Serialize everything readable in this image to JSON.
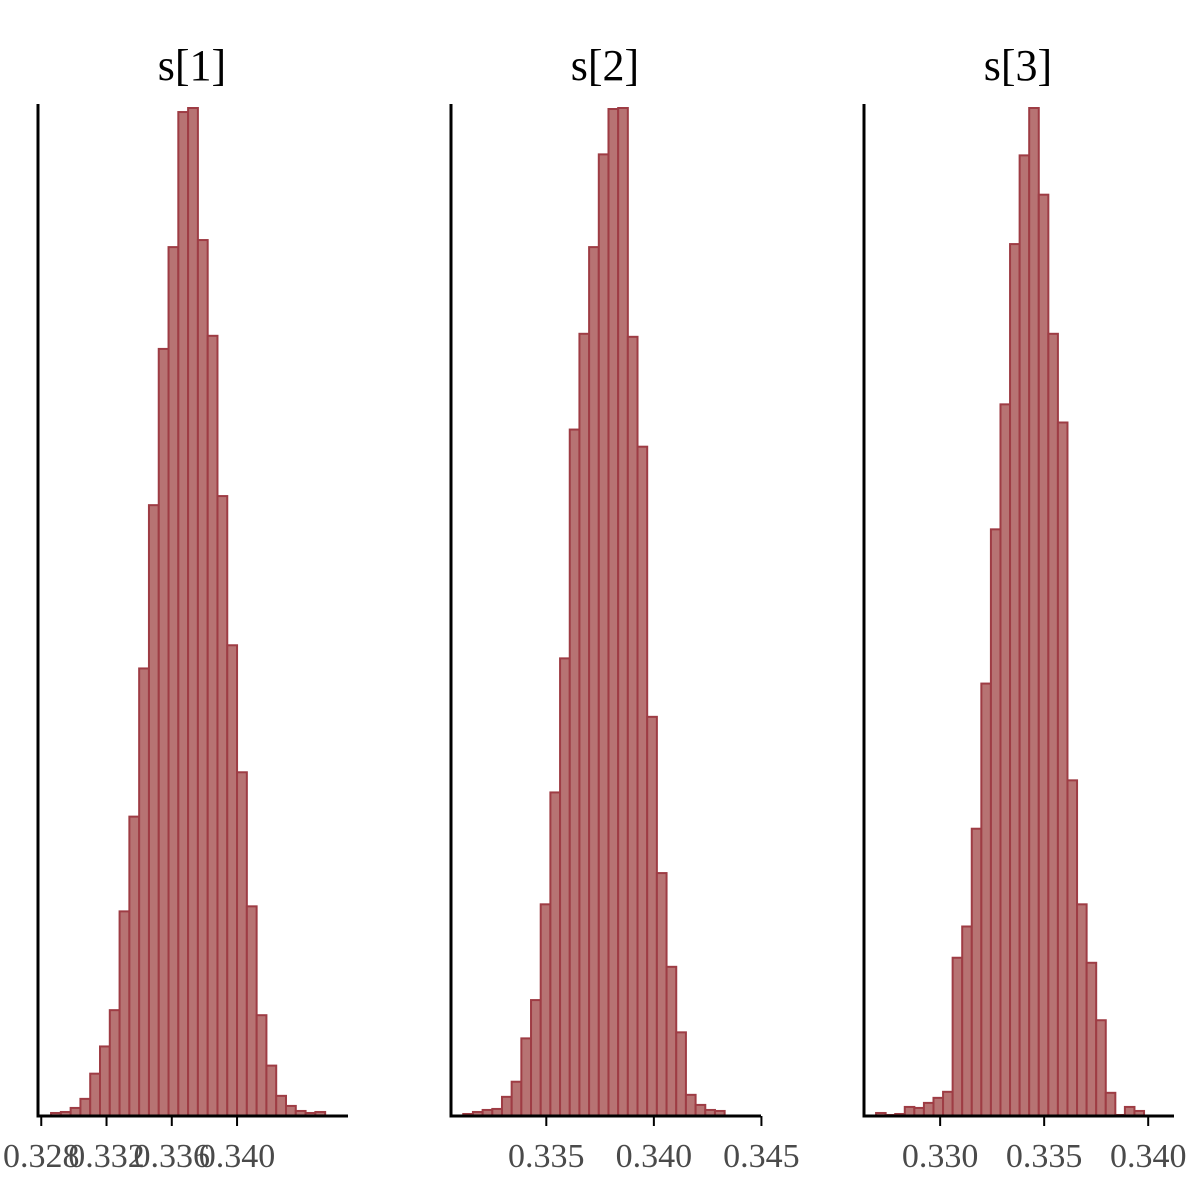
{
  "colors": {
    "bar_fill": "#b77373",
    "bar_edge": "#9e3c44",
    "axis": "#000000",
    "tick_text": "#4a4a4a"
  },
  "chart_data": [
    {
      "type": "bar",
      "title": "s[1]",
      "xlim": [
        0.3278,
        0.3468
      ],
      "ylim": [
        0,
        1
      ],
      "grid": false,
      "x_ticks": [
        0.328,
        0.332,
        0.336,
        0.34
      ],
      "x_tick_labels": [
        "0.328",
        "0.332",
        "0.336",
        "0.340"
      ],
      "bin_start": 0.3286,
      "bin_width": 0.0006,
      "counts": [
        0.003,
        0.004,
        0.008,
        0.017,
        0.042,
        0.069,
        0.105,
        0.203,
        0.297,
        0.444,
        0.606,
        0.761,
        0.862,
        0.996,
        1.0,
        0.869,
        0.774,
        0.615,
        0.467,
        0.341,
        0.208,
        0.1,
        0.05,
        0.02,
        0.01,
        0.005,
        0.003,
        0.004
      ]
    },
    {
      "type": "bar",
      "title": "s[2]",
      "xlim": [
        0.33057,
        0.34498
      ],
      "ylim": [
        0,
        1
      ],
      "grid": false,
      "x_ticks": [
        0.335,
        0.34,
        0.345
      ],
      "x_tick_labels": [
        "0.335",
        "0.340",
        "0.345"
      ],
      "bin_start": 0.33114,
      "bin_width": 0.00045,
      "counts": [
        0.002,
        0.004,
        0.006,
        0.007,
        0.019,
        0.034,
        0.077,
        0.115,
        0.21,
        0.321,
        0.454,
        0.681,
        0.776,
        0.862,
        0.954,
        0.999,
        1.0,
        0.773,
        0.664,
        0.396,
        0.241,
        0.148,
        0.083,
        0.021,
        0.011,
        0.006,
        0.005
      ]
    },
    {
      "type": "bar",
      "title": "s[3]",
      "xlim": [
        0.32634,
        0.34124
      ],
      "ylim": [
        0,
        1
      ],
      "grid": false,
      "x_ticks": [
        0.33,
        0.335,
        0.34
      ],
      "x_tick_labels": [
        "0.330",
        "0.335",
        "0.340"
      ],
      "bin_start": 0.32692,
      "bin_width": 0.00046,
      "counts": [
        0.003,
        0.001,
        0.002,
        0.009,
        0.008,
        0.013,
        0.018,
        0.024,
        0.157,
        0.188,
        0.285,
        0.429,
        0.582,
        0.706,
        0.865,
        0.953,
        1.0,
        0.914,
        0.776,
        0.688,
        0.333,
        0.21,
        0.152,
        0.095,
        0.023,
        0.001,
        0.009,
        0.005
      ]
    }
  ]
}
